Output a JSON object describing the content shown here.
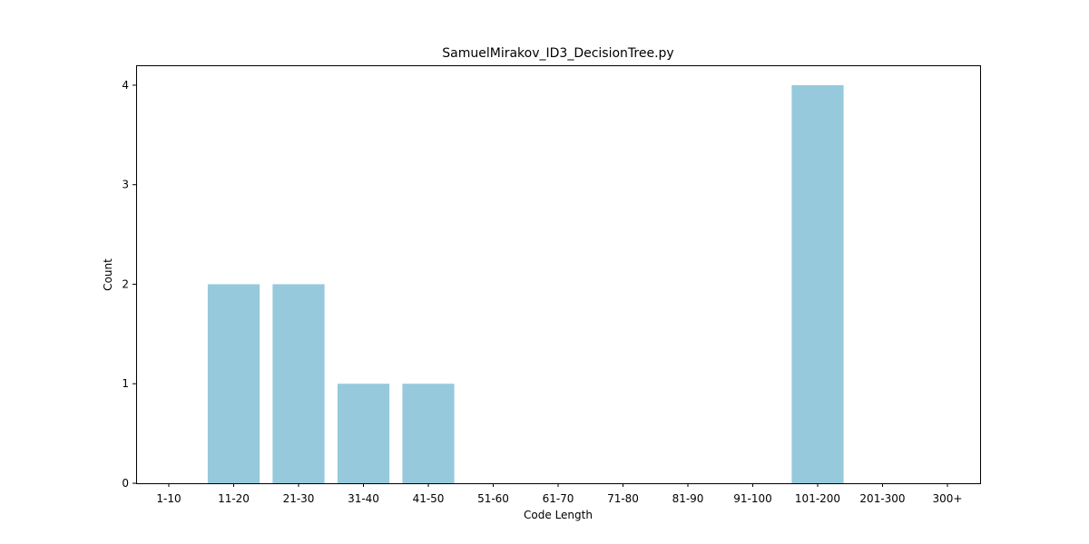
{
  "chart_data": {
    "type": "bar",
    "title": "SamuelMirakov_ID3_DecisionTree.py",
    "xlabel": "Code Length",
    "ylabel": "Count",
    "categories": [
      "1-10",
      "11-20",
      "21-30",
      "31-40",
      "41-50",
      "51-60",
      "61-70",
      "71-80",
      "81-90",
      "91-100",
      "101-200",
      "201-300",
      "300+"
    ],
    "values": [
      0,
      2,
      2,
      1,
      1,
      0,
      0,
      0,
      0,
      0,
      4,
      0,
      0
    ],
    "ylim": [
      0,
      4.2
    ],
    "yticks": [
      "0",
      "1",
      "2",
      "3",
      "4"
    ],
    "bar_color": "#96c9dc",
    "grid": false,
    "legend": "none"
  }
}
